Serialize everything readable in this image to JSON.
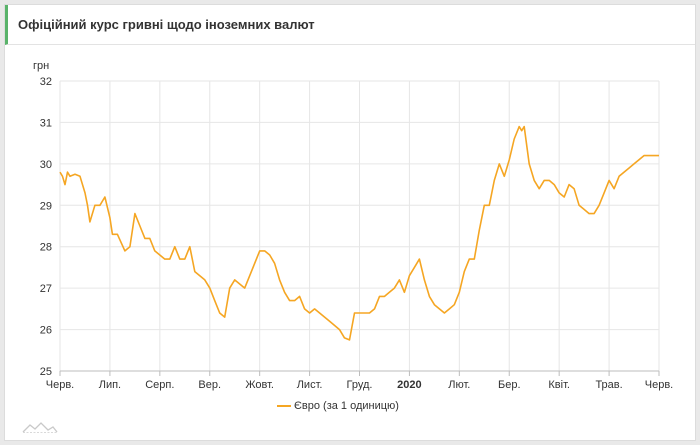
{
  "header": {
    "title": "Офіційний курс гривні щодо іноземних валют"
  },
  "icons": {
    "watermark": "mountain-logo-icon"
  },
  "colors": {
    "line": "#f5a623",
    "grid": "#e6e6e6",
    "header_accent": "#59b36a"
  },
  "chart_data": {
    "type": "line",
    "ylabel": "грн",
    "ylim": [
      25,
      32
    ],
    "yticks": [
      25,
      26,
      27,
      28,
      29,
      30,
      31,
      32
    ],
    "xlim": [
      0,
      12
    ],
    "xticks": [
      {
        "pos": 0,
        "label": "Черв.",
        "bold": false
      },
      {
        "pos": 1,
        "label": "Лип.",
        "bold": false
      },
      {
        "pos": 2,
        "label": "Серп.",
        "bold": false
      },
      {
        "pos": 3,
        "label": "Вер.",
        "bold": false
      },
      {
        "pos": 4,
        "label": "Жовт.",
        "bold": false
      },
      {
        "pos": 5,
        "label": "Лист.",
        "bold": false
      },
      {
        "pos": 6,
        "label": "Груд.",
        "bold": false
      },
      {
        "pos": 7,
        "label": "2020",
        "bold": true
      },
      {
        "pos": 8,
        "label": "Лют.",
        "bold": false
      },
      {
        "pos": 9,
        "label": "Бер.",
        "bold": false
      },
      {
        "pos": 10,
        "label": "Квіт.",
        "bold": false
      },
      {
        "pos": 11,
        "label": "Трав.",
        "bold": false
      },
      {
        "pos": 12,
        "label": "Черв.",
        "bold": false
      }
    ],
    "grid": true,
    "legend_position": "bottom-center",
    "series": [
      {
        "name": "Євро (за 1 одиницю)",
        "color": "#f5a623",
        "x": [
          0,
          0.05,
          0.1,
          0.15,
          0.2,
          0.3,
          0.4,
          0.5,
          0.55,
          0.6,
          0.7,
          0.8,
          0.9,
          1.0,
          1.05,
          1.15,
          1.3,
          1.4,
          1.5,
          1.6,
          1.7,
          1.8,
          1.9,
          2.0,
          2.1,
          2.2,
          2.3,
          2.4,
          2.5,
          2.6,
          2.7,
          2.8,
          2.9,
          3.0,
          3.1,
          3.2,
          3.3,
          3.4,
          3.5,
          3.6,
          3.7,
          3.8,
          3.9,
          4.0,
          4.1,
          4.2,
          4.3,
          4.4,
          4.5,
          4.6,
          4.7,
          4.8,
          4.9,
          5.0,
          5.1,
          5.2,
          5.3,
          5.4,
          5.5,
          5.6,
          5.7,
          5.8,
          5.9,
          6.0,
          6.1,
          6.2,
          6.3,
          6.4,
          6.5,
          6.6,
          6.7,
          6.8,
          6.9,
          7.0,
          7.1,
          7.2,
          7.3,
          7.4,
          7.5,
          7.6,
          7.7,
          7.8,
          7.9,
          8.0,
          8.1,
          8.2,
          8.3,
          8.4,
          8.5,
          8.6,
          8.7,
          8.8,
          8.9,
          9.0,
          9.1,
          9.2,
          9.25,
          9.3,
          9.4,
          9.5,
          9.6,
          9.7,
          9.8,
          9.9,
          10.0,
          10.1,
          10.2,
          10.3,
          10.4,
          10.5,
          10.6,
          10.7,
          10.8,
          10.9,
          11.0,
          11.1,
          11.2,
          11.3,
          11.4,
          11.5,
          11.6,
          11.7,
          11.8,
          11.9,
          12.0
        ],
        "y": [
          29.8,
          29.7,
          29.5,
          29.8,
          29.7,
          29.75,
          29.7,
          29.3,
          29.0,
          28.6,
          29.0,
          29.0,
          29.2,
          28.7,
          28.3,
          28.3,
          27.9,
          28.0,
          28.8,
          28.5,
          28.2,
          28.2,
          27.9,
          27.8,
          27.7,
          27.7,
          28.0,
          27.7,
          27.7,
          28.0,
          27.4,
          27.3,
          27.2,
          27.0,
          26.7,
          26.4,
          26.3,
          27.0,
          27.2,
          27.1,
          27.0,
          27.3,
          27.6,
          27.9,
          27.9,
          27.8,
          27.6,
          27.2,
          26.9,
          26.7,
          26.7,
          26.8,
          26.5,
          26.4,
          26.5,
          26.4,
          26.3,
          26.2,
          26.1,
          26.0,
          25.8,
          25.75,
          26.4,
          26.4,
          26.4,
          26.4,
          26.5,
          26.8,
          26.8,
          26.9,
          27.0,
          27.2,
          26.9,
          27.3,
          27.5,
          27.7,
          27.2,
          26.8,
          26.6,
          26.5,
          26.4,
          26.5,
          26.6,
          26.9,
          27.4,
          27.7,
          27.7,
          28.4,
          29.0,
          29.0,
          29.6,
          30.0,
          29.7,
          30.1,
          30.6,
          30.9,
          30.8,
          30.9,
          30.0,
          29.6,
          29.4,
          29.6,
          29.6,
          29.5,
          29.3,
          29.2,
          29.5,
          29.4,
          29.0,
          28.9,
          28.8,
          28.8,
          29.0,
          29.3,
          29.6,
          29.4,
          29.7,
          29.8,
          29.9,
          30.0,
          30.1,
          30.2,
          30.2,
          30.2,
          30.2
        ]
      }
    ]
  }
}
